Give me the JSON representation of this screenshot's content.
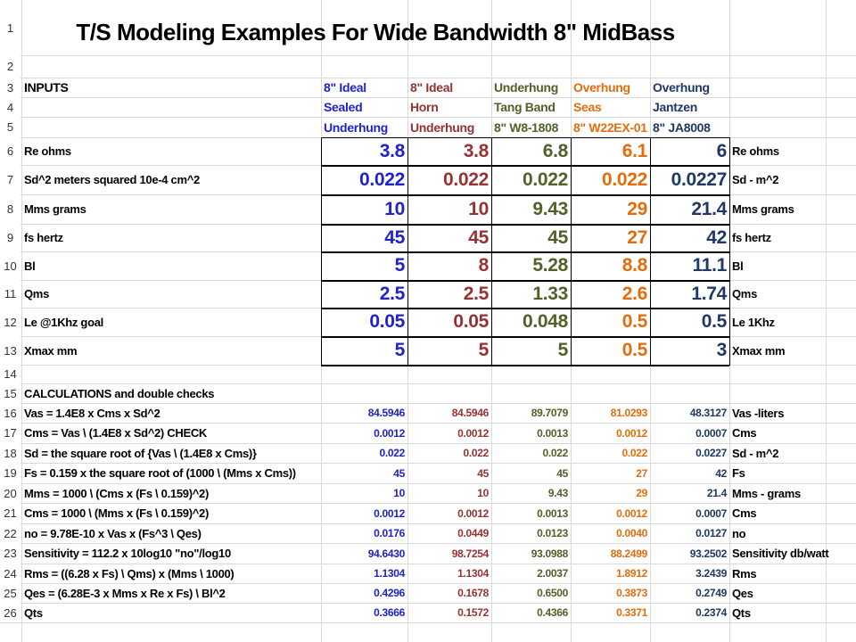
{
  "title": "T/S Modeling Examples For Wide Bandwidth 8\" MidBass",
  "colors": {
    "c1": "#1f23c8",
    "c2": "#963232",
    "c3": "#4f6228",
    "c4": "#e46c0a",
    "c5": "#1f3864",
    "label": "#000000"
  },
  "row_numbers": [
    "1",
    "2",
    "3",
    "4",
    "5",
    "6",
    "7",
    "8",
    "9",
    "10",
    "11",
    "12",
    "13",
    "14",
    "15",
    "16",
    "17",
    "18",
    "19",
    "20",
    "21",
    "22",
    "23",
    "24",
    "25",
    "26"
  ],
  "header": {
    "inputs_label": "INPUTS",
    "c1": [
      "8\" Ideal",
      "Sealed",
      "Underhung"
    ],
    "c2": [
      "8\" Ideal",
      "Horn",
      "Underhung"
    ],
    "c3": [
      "Underhung",
      "Tang Band",
      "8\"  W8-1808"
    ],
    "c4": [
      "Overhung",
      "Seas",
      "8\"  W22EX-01"
    ],
    "c5": [
      "Overhung",
      "Jantzen",
      "8\"  JA8008"
    ]
  },
  "inputs": [
    {
      "label": "Re ohms",
      "vals": [
        "3.8",
        "3.8",
        "6.8",
        "6.1",
        "6"
      ],
      "unit": "Re ohms"
    },
    {
      "label": "Sd^2   meters squared 10e-4 cm^2",
      "vals": [
        "0.022",
        "0.022",
        "0.022",
        "0.022",
        "0.0227"
      ],
      "unit": "Sd - m^2"
    },
    {
      "label": "Mms  grams",
      "vals": [
        "10",
        "10",
        "9.43",
        "29",
        "21.4"
      ],
      "unit": "Mms  grams"
    },
    {
      "label": "fs   hertz",
      "vals": [
        "45",
        "45",
        "45",
        "27",
        "42"
      ],
      "unit": "fs   hertz"
    },
    {
      "label": "Bl",
      "vals": [
        "5",
        "8",
        "5.28",
        "8.8",
        "11.1"
      ],
      "unit": "Bl"
    },
    {
      "label": "Qms",
      "vals": [
        "2.5",
        "2.5",
        "1.33",
        "2.6",
        "1.74"
      ],
      "unit": "Qms"
    },
    {
      "label": "Le @1Khz goal",
      "vals": [
        "0.05",
        "0.05",
        "0.048",
        "0.5",
        "0.5"
      ],
      "unit": "Le 1Khz"
    },
    {
      "label": "Xmax   mm",
      "vals": [
        "5",
        "5",
        "5",
        "0.5",
        "3"
      ],
      "unit": "Xmax mm"
    }
  ],
  "calc_header": "CALCULATIONS and double checks",
  "calcs": [
    {
      "label": "Vas = 1.4E8 x Cms x Sd^2",
      "vals": [
        "84.5946",
        "84.5946",
        "89.7079",
        "81.0293",
        "48.3127"
      ],
      "unit": "Vas -liters"
    },
    {
      "label": "Cms = Vas \\ (1.4E8 x Sd^2)   CHECK",
      "vals": [
        "0.0012",
        "0.0012",
        "0.0013",
        "0.0012",
        "0.0007"
      ],
      "unit": "Cms"
    },
    {
      "label": "Sd = the square root of {Vas \\ (1.4E8 x Cms)}",
      "vals": [
        "0.022",
        "0.022",
        "0.022",
        "0.022",
        "0.0227"
      ],
      "unit": "Sd - m^2"
    },
    {
      "label": "Fs = 0.159 x the square root of (1000 \\ (Mms x Cms))",
      "vals": [
        "45",
        "45",
        "45",
        "27",
        "42"
      ],
      "unit": "Fs"
    },
    {
      "label": "Mms = 1000 \\ (Cms x (Fs \\ 0.159)^2)",
      "vals": [
        "10",
        "10",
        "9.43",
        "29",
        "21.4"
      ],
      "unit": "Mms - grams"
    },
    {
      "label": "Cms = 1000 \\ (Mms x (Fs \\ 0.159)^2)",
      "vals": [
        "0.0012",
        "0.0012",
        "0.0013",
        "0.0012",
        "0.0007"
      ],
      "unit": "Cms"
    },
    {
      "label": "no = 9.78E-10 x Vas x (Fs^3 \\ Qes)",
      "vals": [
        "0.0176",
        "0.0449",
        "0.0123",
        "0.0040",
        "0.0127"
      ],
      "unit": "no"
    },
    {
      "label": "Sensitivity = 112.2 x 10log10 \"no\"/log10",
      "vals": [
        "94.6430",
        "98.7254",
        "93.0988",
        "88.2499",
        "93.2502"
      ],
      "unit": "Sensitivity  db/watt"
    },
    {
      "label": "Rms = ((6.28 x Fs) \\ Qms) x (Mms \\ 1000)",
      "vals": [
        "1.1304",
        "1.1304",
        "2.0037",
        "1.8912",
        "3.2439"
      ],
      "unit": "Rms"
    },
    {
      "label": "Qes = (6.28E-3 x Mms x Re x Fs) \\ Bl^2",
      "vals": [
        "0.4296",
        "0.1678",
        "0.6500",
        "0.3873",
        "0.2749"
      ],
      "unit": "Qes"
    },
    {
      "label": "Qts",
      "vals": [
        "0.3666",
        "0.1572",
        "0.4366",
        "0.3371",
        "0.2374"
      ],
      "unit": "Qts"
    }
  ]
}
